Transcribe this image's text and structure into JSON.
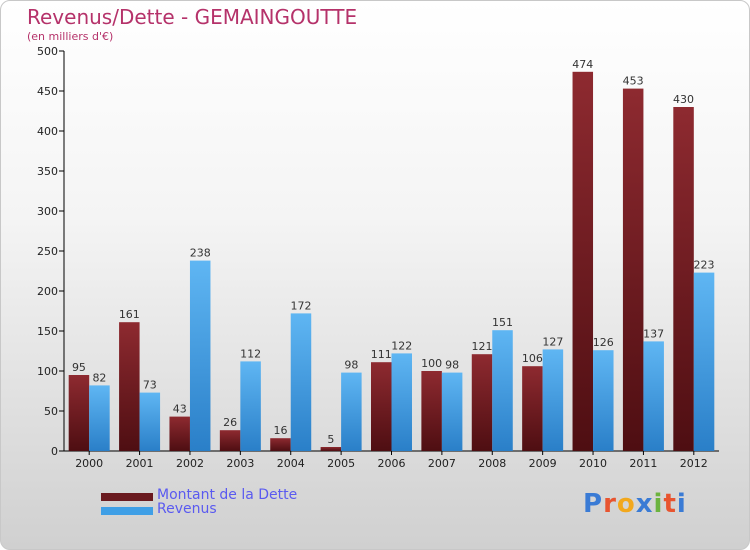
{
  "chart_data": {
    "type": "bar",
    "title": "Revenus/Dette - GEMAINGOUTTE",
    "subtitle": "(en milliers d'€)",
    "categories": [
      "2000",
      "2001",
      "2002",
      "2003",
      "2004",
      "2005",
      "2006",
      "2007",
      "2008",
      "2009",
      "2010",
      "2011",
      "2012"
    ],
    "series": [
      {
        "name": "Montant de la Dette",
        "color": "#7a1f25",
        "values": [
          95,
          161,
          43,
          26,
          16,
          5,
          111,
          100,
          121,
          106,
          474,
          453,
          430
        ]
      },
      {
        "name": "Revenus",
        "color": "#3f9fe6",
        "values": [
          82,
          73,
          238,
          112,
          172,
          98,
          122,
          98,
          151,
          127,
          126,
          137,
          223
        ]
      }
    ],
    "ylim": [
      0,
      500
    ],
    "yticks": [
      0,
      50,
      100,
      150,
      200,
      250,
      300,
      350,
      400,
      450,
      500
    ],
    "grid": false,
    "legend_position": "bottom-left"
  },
  "logo": {
    "letters": [
      "P",
      "r",
      "o",
      "x",
      "i",
      "t",
      "i"
    ],
    "colors": [
      "#3a7bd5",
      "#e8542f",
      "#f2a81d",
      "#3a7bd5",
      "#6cb33f",
      "#e8542f",
      "#3a7bd5"
    ]
  }
}
